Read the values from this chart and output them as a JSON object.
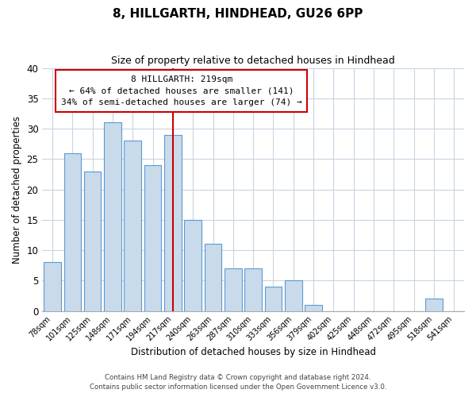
{
  "title": "8, HILLGARTH, HINDHEAD, GU26 6PP",
  "subtitle": "Size of property relative to detached houses in Hindhead",
  "xlabel": "Distribution of detached houses by size in Hindhead",
  "ylabel": "Number of detached properties",
  "bar_labels": [
    "78sqm",
    "101sqm",
    "125sqm",
    "148sqm",
    "171sqm",
    "194sqm",
    "217sqm",
    "240sqm",
    "263sqm",
    "287sqm",
    "310sqm",
    "333sqm",
    "356sqm",
    "379sqm",
    "402sqm",
    "425sqm",
    "448sqm",
    "472sqm",
    "495sqm",
    "518sqm",
    "541sqm"
  ],
  "bar_values": [
    8,
    26,
    23,
    31,
    28,
    24,
    29,
    15,
    11,
    7,
    7,
    4,
    5,
    1,
    0,
    0,
    0,
    0,
    0,
    2,
    0
  ],
  "bar_color": "#c9daea",
  "bar_edge_color": "#5b9bd5",
  "vline_x_index": 6,
  "vline_color": "#cc0000",
  "annotation_title": "8 HILLGARTH: 219sqm",
  "annotation_line1": "← 64% of detached houses are smaller (141)",
  "annotation_line2": "34% of semi-detached houses are larger (74) →",
  "annotation_box_color": "#ffffff",
  "annotation_box_edge": "#cc0000",
  "ylim": [
    0,
    40
  ],
  "yticks": [
    0,
    5,
    10,
    15,
    20,
    25,
    30,
    35,
    40
  ],
  "footnote1": "Contains HM Land Registry data © Crown copyright and database right 2024.",
  "footnote2": "Contains public sector information licensed under the Open Government Licence v3.0.",
  "bg_color": "#ffffff",
  "grid_color": "#c8d4e3"
}
